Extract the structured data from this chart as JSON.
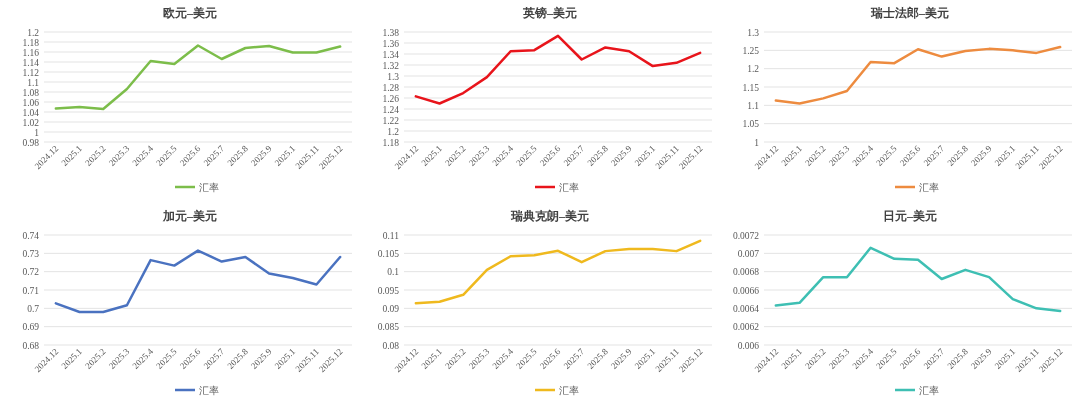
{
  "chart_data": [
    {
      "type": "line",
      "title": "欧元–美元",
      "categories": [
        "2024.12",
        "2025.1",
        "2025.2",
        "2025.3",
        "2025.4",
        "2025.5",
        "2025.6",
        "2025.7",
        "2025.8",
        "2025.9",
        "2025.1",
        "2025.11",
        "2025.12"
      ],
      "series": [
        {
          "name": "汇率",
          "color": "#7cbd4a",
          "values": [
            1.047,
            1.05,
            1.046,
            1.086,
            1.142,
            1.136,
            1.173,
            1.146,
            1.168,
            1.172,
            1.159,
            1.159,
            1.171
          ]
        }
      ],
      "ylim": [
        0.98,
        1.2
      ],
      "yticks": [
        0.98,
        1,
        1.02,
        1.04,
        1.06,
        1.08,
        1.1,
        1.12,
        1.14,
        1.16,
        1.18,
        1.2
      ],
      "grid": "y",
      "legend": "bottom"
    },
    {
      "type": "line",
      "title": "英镑–美元",
      "categories": [
        "2024.12",
        "2025.1",
        "2025.2",
        "2025.3",
        "2025.4",
        "2025.5",
        "2025.6",
        "2025.7",
        "2025.8",
        "2025.9",
        "2025.1",
        "2025.11",
        "2025.12"
      ],
      "series": [
        {
          "name": "汇率",
          "color": "#e8141b",
          "values": [
            1.263,
            1.25,
            1.269,
            1.298,
            1.345,
            1.347,
            1.373,
            1.33,
            1.352,
            1.345,
            1.318,
            1.324,
            1.342
          ]
        }
      ],
      "ylim": [
        1.18,
        1.38
      ],
      "yticks": [
        1.18,
        1.2,
        1.22,
        1.24,
        1.26,
        1.28,
        1.3,
        1.32,
        1.34,
        1.36,
        1.38
      ],
      "grid": "y",
      "legend": "bottom"
    },
    {
      "type": "line",
      "title": "瑞士法郎–美元",
      "categories": [
        "2024.12",
        "2025.1",
        "2025.2",
        "2025.3",
        "2025.4",
        "2025.5",
        "2025.6",
        "2025.7",
        "2025.8",
        "2025.9",
        "2025.1",
        "2025.11",
        "2025.12"
      ],
      "series": [
        {
          "name": "汇率",
          "color": "#ed8b3f",
          "values": [
            1.113,
            1.105,
            1.119,
            1.139,
            1.218,
            1.215,
            1.253,
            1.233,
            1.248,
            1.254,
            1.25,
            1.243,
            1.259
          ]
        }
      ],
      "ylim": [
        1,
        1.3
      ],
      "yticks": [
        1,
        1.05,
        1.1,
        1.15,
        1.2,
        1.25,
        1.3
      ],
      "grid": "y",
      "legend": "bottom"
    },
    {
      "type": "line",
      "title": "加元–美元",
      "categories": [
        "2024.12",
        "2025.1",
        "2025.2",
        "2025.3",
        "2025.4",
        "2025.5",
        "2025.6",
        "2025.7",
        "2025.8",
        "2025.9",
        "2025.1",
        "2025.11",
        "2025.12"
      ],
      "series": [
        {
          "name": "汇率",
          "color": "#4a72c0",
          "values": [
            0.7027,
            0.698,
            0.698,
            0.7017,
            0.7263,
            0.7233,
            0.7315,
            0.7255,
            0.728,
            0.719,
            0.7165,
            0.713,
            0.728
          ]
        }
      ],
      "ylim": [
        0.68,
        0.74
      ],
      "yticks": [
        0.68,
        0.69,
        0.7,
        0.71,
        0.72,
        0.73,
        0.74
      ],
      "grid": "y",
      "legend": "bottom"
    },
    {
      "type": "line",
      "title": "瑞典克朗–美元",
      "categories": [
        "2024.12",
        "2025.1",
        "2025.2",
        "2025.3",
        "2025.4",
        "2025.5",
        "2025.6",
        "2025.7",
        "2025.8",
        "2025.9",
        "2025.1",
        "2025.11",
        "2025.12"
      ],
      "series": [
        {
          "name": "汇率",
          "color": "#efb91e",
          "values": [
            0.0914,
            0.0918,
            0.0937,
            0.1005,
            0.1042,
            0.1045,
            0.1057,
            0.1026,
            0.1056,
            0.1062,
            0.1062,
            0.1056,
            0.1084
          ]
        }
      ],
      "ylim": [
        0.08,
        0.11
      ],
      "yticks": [
        0.08,
        0.085,
        0.09,
        0.095,
        0.1,
        0.105,
        0.11
      ],
      "grid": "y",
      "legend": "bottom"
    },
    {
      "type": "line",
      "title": "日元–美元",
      "categories": [
        "2024.12",
        "2025.1",
        "2025.2",
        "2025.3",
        "2025.4",
        "2025.5",
        "2025.6",
        "2025.7",
        "2025.8",
        "2025.9",
        "2025.1",
        "2025.11",
        "2025.12"
      ],
      "series": [
        {
          "name": "汇率",
          "color": "#3ebfb3",
          "values": [
            0.00643,
            0.00646,
            0.00674,
            0.00674,
            0.00706,
            0.00694,
            0.00693,
            0.00672,
            0.00682,
            0.00674,
            0.0065,
            0.0064,
            0.00637
          ]
        }
      ],
      "ylim": [
        0.006,
        0.0072
      ],
      "yticks": [
        0.006,
        0.0062,
        0.0064,
        0.0066,
        0.0068,
        0.007,
        0.0072
      ],
      "grid": "y",
      "legend": "bottom"
    }
  ]
}
